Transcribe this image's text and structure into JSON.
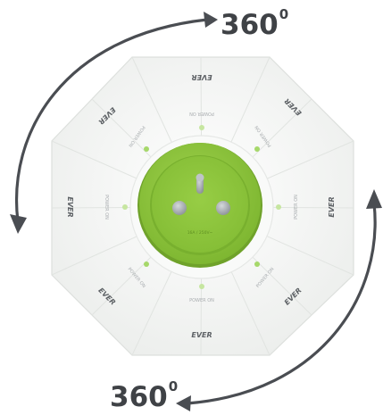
{
  "labels": {
    "rotation_top": "360",
    "rotation_top_sup": "0",
    "rotation_bottom": "360",
    "rotation_bottom_sup": "0"
  },
  "device": {
    "brand_labels": [
      "EVER",
      "EVER",
      "EVER",
      "EVER",
      "EVER",
      "EVER",
      "EVER",
      "EVER"
    ],
    "outlet_labels": [
      "POWER ON",
      "POWER ON",
      "POWER ON",
      "POWER ON",
      "POWER ON",
      "POWER ON",
      "POWER ON",
      "POWER ON"
    ],
    "socket_text": "16A / 250V~"
  },
  "colors": {
    "arrow": "#4a4d52",
    "label": "#3f4246",
    "body": "#f4f5f4",
    "body_edge": "#d8dbd8",
    "socket_green": "#8cc63e",
    "socket_green_dark": "#6fa22a",
    "pin_grey": "#9aa0a6",
    "led_green": "#a6d86a"
  },
  "icons": {
    "top_arrow": "curved-arrow-icon",
    "bottom_arrow": "curved-arrow-icon"
  }
}
